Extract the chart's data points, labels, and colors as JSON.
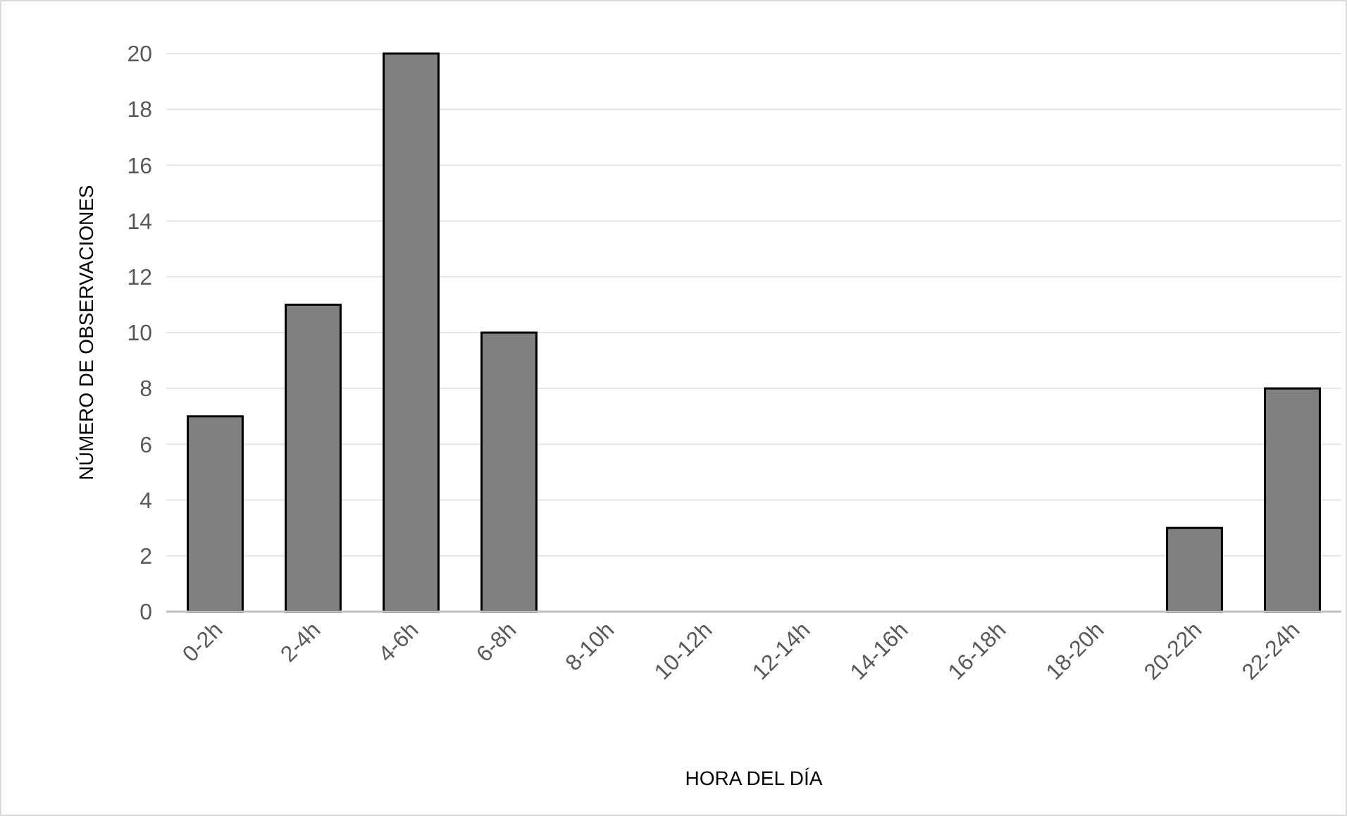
{
  "chart_data": {
    "type": "bar",
    "xlabel": "HORA DEL DÍA",
    "ylabel": "NÚMERO DE OBSERVACIONES",
    "categories": [
      "0-2h",
      "2-4h",
      "4-6h",
      "6-8h",
      "8-10h",
      "10-12h",
      "12-14h",
      "14-16h",
      "16-18h",
      "18-20h",
      "20-22h",
      "22-24h"
    ],
    "values": [
      7,
      11,
      20,
      10,
      0,
      0,
      0,
      0,
      0,
      0,
      3,
      8
    ],
    "color": "#808080",
    "ylim": [
      0,
      20
    ],
    "yticks": [
      0,
      2,
      4,
      6,
      8,
      10,
      12,
      14,
      16,
      18,
      20
    ],
    "grid": "y"
  }
}
